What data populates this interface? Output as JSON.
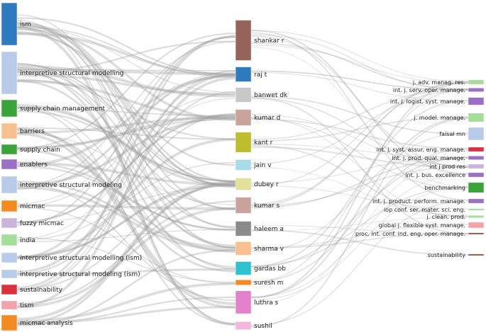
{
  "left_nodes": [
    {
      "label": "ism",
      "color": "#2f7bbf",
      "weight": 3
    },
    {
      "label": "interpretive structural modelling",
      "color": "#b8cbe8",
      "weight": 3
    },
    {
      "label": "supply chain management",
      "color": "#3aa33a",
      "weight": 1.2
    },
    {
      "label": "barriers",
      "color": "#f8c08e",
      "weight": 1.1
    },
    {
      "label": "supply chain",
      "color": "#3aa33a",
      "weight": 0.7
    },
    {
      "label": "enablers",
      "color": "#9a6fc6",
      "weight": 0.7
    },
    {
      "label": "interpretive structural modeling",
      "color": "#b8cbe8",
      "weight": 1.2
    },
    {
      "label": "micmac",
      "color": "#f48a22",
      "weight": 0.8
    },
    {
      "label": "fuzzy micmac",
      "color": "#c9b4dc",
      "weight": 0.7
    },
    {
      "label": "india",
      "color": "#a5dd9b",
      "weight": 0.8
    },
    {
      "label": "interpretive structural modelling (ism)",
      "color": "#b8cbe8",
      "weight": 0.7
    },
    {
      "label": "interpretive structural modeling (ism)",
      "color": "#b8cbe8",
      "weight": 0.6
    },
    {
      "label": "sustainability",
      "color": "#d8323c",
      "weight": 0.7
    },
    {
      "label": "tism",
      "color": "#f2a3a8",
      "weight": 0.6
    },
    {
      "label": "micmac analysis",
      "color": "#f48a22",
      "weight": 1.1
    }
  ],
  "middle_nodes": [
    {
      "label": "shankar r",
      "color": "#96635a",
      "weight": 3
    },
    {
      "label": "raj t",
      "color": "#2f7bbf",
      "weight": 1.1
    },
    {
      "label": "banwet dk",
      "color": "#c8c8c8",
      "weight": 1.1
    },
    {
      "label": "kumar d",
      "color": "#caa49c",
      "weight": 1.2
    },
    {
      "label": "kant r",
      "color": "#bdbd2d",
      "weight": 1.5
    },
    {
      "label": "jain v",
      "color": "#a9dbe8",
      "weight": 0.8
    },
    {
      "label": "dubey r",
      "color": "#e1e19a",
      "weight": 0.9
    },
    {
      "label": "kumar s",
      "color": "#caa49c",
      "weight": 1.2
    },
    {
      "label": "haleem a",
      "color": "#8a8a8a",
      "weight": 1.1
    },
    {
      "label": "sharma v",
      "color": "#f8c08e",
      "weight": 1.0
    },
    {
      "label": "gardas bb",
      "color": "#2ec2cf",
      "weight": 1.0
    },
    {
      "label": "suresh m",
      "color": "#f48a22",
      "weight": 0.4
    },
    {
      "label": "luthra s",
      "color": "#e580cc",
      "weight": 1.7
    },
    {
      "label": "sushil",
      "color": "#f2b6df",
      "weight": 0.6
    }
  ],
  "right_nodes": [
    {
      "label": "j. adv. manag. res.",
      "color": "#a5dd9b",
      "weight": 0.35
    },
    {
      "label": "int. j. serv. oper. manage.",
      "color": "#9a6fc6",
      "weight": 0.3
    },
    {
      "label": "int. j. logist. syst. manage.",
      "color": "#9a6fc6",
      "weight": 0.6
    },
    {
      "label": "j. model. manage.",
      "color": "#a5dd9b",
      "weight": 0.7
    },
    {
      "label": "faisal mn",
      "color": "#b8cbe8",
      "weight": 1.0
    },
    {
      "label": "int. j. syst. assur. eng. manage.",
      "color": "#d8323c",
      "weight": 0.35
    },
    {
      "label": "int. j. prod. qual. manage.",
      "color": "#9a6fc6",
      "weight": 0.3
    },
    {
      "label": "int j prod res",
      "color": "#c9b4dc",
      "weight": 0.35
    },
    {
      "label": "int. j. bus. excellence",
      "color": "#9a6fc6",
      "weight": 0.35
    },
    {
      "label": "benchmarking",
      "color": "#3aa33a",
      "weight": 0.8
    },
    {
      "label": "int. j. product. perform. manage.",
      "color": "#9a6fc6",
      "weight": 0.35
    },
    {
      "label": "iop conf. ser. mater. sci. eng.",
      "color": "#a5dd9b",
      "weight": 0.15
    },
    {
      "label": "j. clean. prod.",
      "color": "#a5dd9b",
      "weight": 0.2
    },
    {
      "label": "global j. flexible syst. manage.",
      "color": "#f2a3a8",
      "weight": 0.45
    },
    {
      "label": "proc. int. conf. ind. eng. oper. manage.",
      "color": "#96635a",
      "weight": 0.15
    },
    {
      "label": "sustainability",
      "color": "#96635a",
      "weight": 0.15
    }
  ]
}
